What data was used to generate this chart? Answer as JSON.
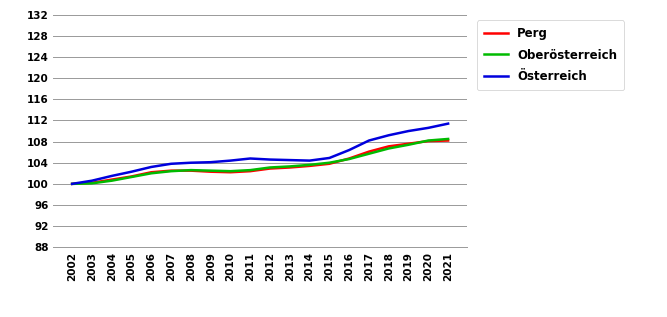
{
  "years": [
    2002,
    2003,
    2004,
    2005,
    2006,
    2007,
    2008,
    2009,
    2010,
    2011,
    2012,
    2013,
    2014,
    2015,
    2016,
    2017,
    2018,
    2019,
    2020,
    2021
  ],
  "perg": [
    100.0,
    100.2,
    100.8,
    101.4,
    102.2,
    102.5,
    102.5,
    102.3,
    102.2,
    102.4,
    102.9,
    103.1,
    103.4,
    103.8,
    104.8,
    106.1,
    107.1,
    107.6,
    108.1,
    108.2
  ],
  "oberoesterreich": [
    100.0,
    100.1,
    100.6,
    101.3,
    102.0,
    102.4,
    102.6,
    102.5,
    102.4,
    102.6,
    103.1,
    103.3,
    103.6,
    104.0,
    104.7,
    105.7,
    106.7,
    107.4,
    108.2,
    108.5
  ],
  "oesterreich": [
    100.0,
    100.6,
    101.5,
    102.3,
    103.2,
    103.8,
    104.0,
    104.1,
    104.4,
    104.8,
    104.6,
    104.5,
    104.4,
    104.9,
    106.4,
    108.2,
    109.2,
    110.0,
    110.6,
    111.4
  ],
  "perg_color": "#ff0000",
  "oberoesterreich_color": "#00bb00",
  "oesterreich_color": "#0000dd",
  "ylim": [
    88,
    133
  ],
  "yticks": [
    88,
    92,
    96,
    100,
    104,
    108,
    112,
    116,
    120,
    124,
    128,
    132
  ],
  "linewidth": 1.8,
  "bg_color": "#ffffff",
  "grid_color": "#999999",
  "legend_labels": [
    "Perg",
    "Oberösterreich",
    "Österreich"
  ],
  "figsize": [
    6.67,
    3.17
  ],
  "dpi": 100
}
